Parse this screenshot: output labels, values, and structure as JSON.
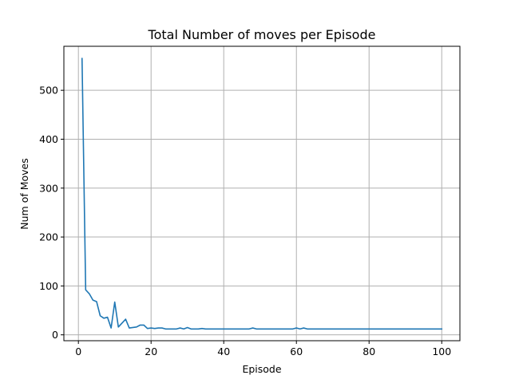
{
  "chart_data": {
    "type": "line",
    "title": "Total Number of moves per Episode",
    "xlabel": "Episode",
    "ylabel": "Num of Moves",
    "xlim": [
      -4,
      105
    ],
    "ylim": [
      -12,
      590
    ],
    "xticks": [
      0,
      20,
      40,
      60,
      80,
      100
    ],
    "yticks": [
      0,
      100,
      200,
      300,
      400,
      500
    ],
    "grid": true,
    "series_color": "#1f77b4",
    "x": [
      1,
      2,
      3,
      4,
      5,
      6,
      7,
      8,
      9,
      10,
      11,
      12,
      13,
      14,
      15,
      16,
      17,
      18,
      19,
      20,
      21,
      22,
      23,
      24,
      25,
      26,
      27,
      28,
      29,
      30,
      31,
      32,
      33,
      34,
      35,
      36,
      37,
      38,
      39,
      40,
      41,
      42,
      43,
      44,
      45,
      46,
      47,
      48,
      49,
      50,
      51,
      52,
      53,
      54,
      55,
      56,
      57,
      58,
      59,
      60,
      61,
      62,
      63,
      64,
      65,
      66,
      67,
      68,
      69,
      70,
      71,
      72,
      73,
      74,
      75,
      76,
      77,
      78,
      79,
      80,
      81,
      82,
      83,
      84,
      85,
      86,
      87,
      88,
      89,
      90,
      91,
      92,
      93,
      94,
      95,
      96,
      97,
      98,
      99,
      100
    ],
    "y": [
      565,
      92,
      84,
      71,
      68,
      39,
      34,
      36,
      14,
      67,
      16,
      24,
      32,
      14,
      15,
      16,
      20,
      20,
      13,
      14,
      13,
      14,
      14,
      12,
      12,
      12,
      12,
      14,
      12,
      15,
      12,
      12,
      12,
      13,
      12,
      12,
      12,
      12,
      12,
      12,
      12,
      12,
      12,
      12,
      12,
      12,
      12,
      14,
      12,
      12,
      12,
      12,
      12,
      12,
      12,
      12,
      12,
      12,
      12,
      14,
      12,
      14,
      12,
      12,
      12,
      12,
      12,
      12,
      12,
      12,
      12,
      12,
      12,
      12,
      12,
      12,
      12,
      12,
      12,
      12,
      12,
      12,
      12,
      12,
      12,
      12,
      12,
      12,
      12,
      12,
      12,
      12,
      12,
      12,
      12,
      12,
      12,
      12,
      12,
      12
    ]
  }
}
